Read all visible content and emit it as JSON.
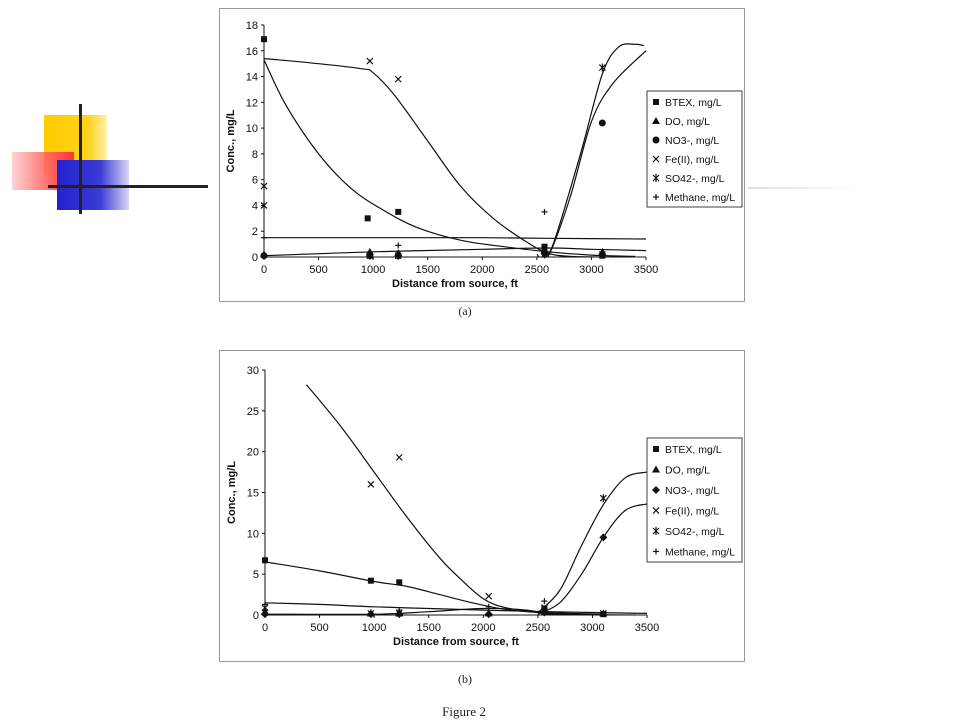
{
  "figure_title": "Figure 2",
  "chart_data": [
    {
      "type": "scatter",
      "caption": "(a)",
      "xlabel": "Distance from source, ft",
      "ylabel": "Conc., mg/L",
      "xlim": [
        0,
        3500
      ],
      "ylim": [
        0,
        18
      ],
      "xticks": [
        0,
        500,
        1000,
        1500,
        2000,
        2500,
        3000,
        3500
      ],
      "yticks": [
        0,
        2,
        4,
        6,
        8,
        10,
        12,
        14,
        16,
        18
      ],
      "legend_position": "right",
      "series": [
        {
          "name": "BTEX, mg/L",
          "marker": "square",
          "points": [
            [
              0,
              16.9
            ],
            [
              950,
              3.0
            ],
            [
              1230,
              3.5
            ],
            [
              2570,
              0.8
            ],
            [
              3100,
              0.1
            ]
          ]
        },
        {
          "name": "DO, mg/L",
          "marker": "triangle",
          "points": [
            [
              0,
              0.2
            ],
            [
              970,
              0.4
            ],
            [
              1230,
              0.3
            ],
            [
              2570,
              0.5
            ],
            [
              3100,
              0.4
            ]
          ]
        },
        {
          "name": "NO3-, mg/L",
          "marker": "circle",
          "points": [
            [
              0,
              0.1
            ],
            [
              970,
              0.1
            ],
            [
              1230,
              0.1
            ],
            [
              2570,
              0.3
            ],
            [
              3100,
              10.4
            ]
          ]
        },
        {
          "name": "Fe(II), mg/L",
          "marker": "x",
          "points": [
            [
              0,
              5.5
            ],
            [
              970,
              15.2
            ],
            [
              1230,
              13.8
            ],
            [
              2570,
              0.7
            ],
            [
              3100,
              0.2
            ]
          ]
        },
        {
          "name": "SO42-, mg/L",
          "marker": "star",
          "points": [
            [
              0,
              4.0
            ],
            [
              970,
              0.1
            ],
            [
              1230,
              0.1
            ],
            [
              2570,
              0.2
            ],
            [
              3100,
              14.7
            ]
          ]
        },
        {
          "name": "Methane, mg/L",
          "marker": "plus",
          "points": [
            [
              0,
              1.5
            ],
            [
              1230,
              0.9
            ],
            [
              2570,
              3.5
            ],
            [
              3100,
              0.2
            ]
          ]
        }
      ],
      "curves": [
        [
          [
            0,
            15.4
          ],
          [
            500,
            15.0
          ],
          [
            900,
            14.6
          ],
          [
            1000,
            14.3
          ],
          [
            1200,
            12.5
          ],
          [
            1500,
            9.0
          ],
          [
            1800,
            5.5
          ],
          [
            2100,
            3.0
          ],
          [
            2400,
            1.2
          ],
          [
            2600,
            0.3
          ],
          [
            2800,
            0.05
          ],
          [
            3100,
            0.0
          ]
        ],
        [
          [
            0,
            15.3
          ],
          [
            200,
            11.8
          ],
          [
            500,
            8.0
          ],
          [
            800,
            5.3
          ],
          [
            1100,
            3.6
          ],
          [
            1400,
            2.3
          ],
          [
            1800,
            1.3
          ],
          [
            2200,
            0.8
          ],
          [
            2600,
            0.4
          ],
          [
            3000,
            0.15
          ],
          [
            3400,
            0.05
          ]
        ],
        [
          [
            0,
            1.5
          ],
          [
            1000,
            1.5
          ],
          [
            2000,
            1.5
          ],
          [
            2600,
            1.45
          ],
          [
            3500,
            1.4
          ]
        ],
        [
          [
            0,
            0.1
          ],
          [
            1000,
            0.4
          ],
          [
            2000,
            0.6
          ],
          [
            2600,
            0.7
          ],
          [
            3000,
            0.6
          ],
          [
            3500,
            0.5
          ]
        ],
        [
          [
            2500,
            0.2
          ],
          [
            2600,
            0.0
          ],
          [
            2800,
            4.5
          ],
          [
            3000,
            10.5
          ],
          [
            3200,
            13.5
          ],
          [
            3500,
            16.0
          ]
        ],
        [
          [
            2550,
            0.0
          ],
          [
            2650,
            1.0
          ],
          [
            2900,
            8.0
          ],
          [
            3100,
            14.2
          ],
          [
            3250,
            16.3
          ],
          [
            3400,
            16.5
          ],
          [
            3480,
            16.4
          ]
        ]
      ]
    },
    {
      "type": "scatter",
      "caption": "(b)",
      "xlabel": "Distance from source, ft",
      "ylabel": "Conc., mg/L",
      "xlim": [
        0,
        3500
      ],
      "ylim": [
        0,
        30
      ],
      "xticks": [
        0,
        500,
        1000,
        1500,
        2000,
        2500,
        3000,
        3500
      ],
      "yticks": [
        0,
        5,
        10,
        15,
        20,
        25,
        30
      ],
      "legend_position": "right",
      "series": [
        {
          "name": "BTEX, mg/L",
          "marker": "square",
          "points": [
            [
              0,
              6.7
            ],
            [
              970,
              4.2
            ],
            [
              1230,
              4.0
            ],
            [
              2560,
              0.8
            ],
            [
              3100,
              0.1
            ]
          ]
        },
        {
          "name": "DO, mg/L",
          "marker": "triangle",
          "points": [
            [
              0,
              0.4
            ],
            [
              970,
              0.2
            ],
            [
              1230,
              0.2
            ],
            [
              2050,
              0.2
            ],
            [
              2560,
              0.3
            ],
            [
              3100,
              0.2
            ]
          ]
        },
        {
          "name": "NO3-, mg/L",
          "marker": "diamond",
          "points": [
            [
              0,
              0.1
            ],
            [
              970,
              0.1
            ],
            [
              1230,
              0.1
            ],
            [
              2050,
              0.1
            ],
            [
              2560,
              0.3
            ],
            [
              3100,
              9.5
            ]
          ]
        },
        {
          "name": "Fe(II), mg/L",
          "marker": "x",
          "points": [
            [
              0,
              0.9
            ],
            [
              970,
              16.0
            ],
            [
              1230,
              19.3
            ],
            [
              2050,
              2.3
            ],
            [
              2560,
              0.9
            ],
            [
              3100,
              0.2
            ]
          ]
        },
        {
          "name": "SO42-, mg/L",
          "marker": "star",
          "points": [
            [
              0,
              0.3
            ],
            [
              970,
              0.2
            ],
            [
              1230,
              0.2
            ],
            [
              2560,
              0.5
            ],
            [
              3100,
              14.3
            ]
          ]
        },
        {
          "name": "Methane, mg/L",
          "marker": "plus",
          "points": [
            [
              0,
              1.3
            ],
            [
              1230,
              0.6
            ],
            [
              2050,
              1.0
            ],
            [
              2560,
              1.7
            ],
            [
              3100,
              0.1
            ]
          ]
        }
      ],
      "curves": [
        [
          [
            380,
            28.2
          ],
          [
            700,
            23.0
          ],
          [
            1000,
            17.5
          ],
          [
            1300,
            12.0
          ],
          [
            1600,
            7.0
          ],
          [
            1800,
            4.3
          ],
          [
            2000,
            2.0
          ],
          [
            2200,
            0.9
          ],
          [
            2500,
            0.4
          ],
          [
            2800,
            0.2
          ],
          [
            3100,
            0.1
          ]
        ],
        [
          [
            0,
            6.5
          ],
          [
            500,
            5.4
          ],
          [
            1000,
            4.1
          ],
          [
            1300,
            3.5
          ],
          [
            1600,
            2.5
          ],
          [
            1900,
            1.5
          ],
          [
            2200,
            0.7
          ],
          [
            2600,
            0.2
          ],
          [
            3000,
            0.05
          ],
          [
            3400,
            0.0
          ]
        ],
        [
          [
            0,
            1.5
          ],
          [
            500,
            1.3
          ],
          [
            1000,
            1.0
          ],
          [
            1500,
            0.8
          ],
          [
            2000,
            0.6
          ],
          [
            2600,
            0.4
          ],
          [
            3500,
            0.2
          ]
        ],
        [
          [
            0,
            0.1
          ],
          [
            1000,
            0.1
          ],
          [
            1500,
            0.4
          ],
          [
            2000,
            0.8
          ],
          [
            2400,
            0.6
          ],
          [
            2600,
            0.1
          ],
          [
            3000,
            0.0
          ]
        ],
        [
          [
            2500,
            0.3
          ],
          [
            2700,
            3.0
          ],
          [
            2900,
            8.5
          ],
          [
            3100,
            13.5
          ],
          [
            3300,
            16.8
          ],
          [
            3500,
            17.5
          ]
        ],
        [
          [
            2500,
            0.1
          ],
          [
            2700,
            1.5
          ],
          [
            2900,
            5.0
          ],
          [
            3100,
            9.5
          ],
          [
            3300,
            12.8
          ],
          [
            3500,
            13.6
          ]
        ]
      ]
    }
  ]
}
